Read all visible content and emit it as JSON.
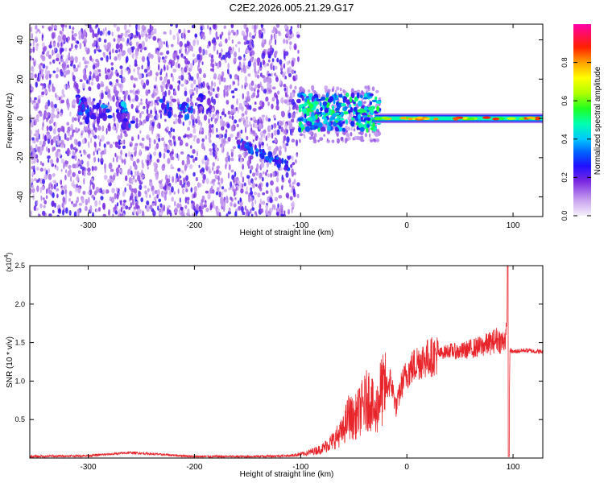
{
  "figure": {
    "title": "C2E2.2026.005.21.29.G17"
  },
  "colors": {
    "snr_line": "#e8252b",
    "spectrogram_scale": [
      "#ffffff",
      "#e6d8f7",
      "#8a2be2",
      "#3b00ff",
      "#0040ff",
      "#00c8ff",
      "#00ff80",
      "#80ff00",
      "#ffff00",
      "#ff8000",
      "#ff0000",
      "#ff00a0"
    ]
  },
  "chart_data": [
    {
      "type": "heatmap",
      "title": "C2E2.2026.005.21.29.G17",
      "xlabel": "Height of straight line (km)",
      "ylabel": "Frequency (Hz)",
      "xlim": [
        -355,
        128
      ],
      "ylim": [
        -50,
        48
      ],
      "xticks": [
        -300,
        -200,
        -100,
        0,
        100
      ],
      "yticks": [
        -40,
        -20,
        0,
        20,
        40
      ],
      "xtick_labels": [
        "-300",
        "-200",
        "-100",
        "0",
        "100"
      ],
      "ytick_labels": [
        "-40",
        "-20",
        "0",
        "20",
        "40"
      ],
      "colorbar": {
        "label": "Normalized spectral amplitude",
        "range": [
          0,
          1
        ],
        "ticks": [
          0.0,
          0.2,
          0.4,
          0.6,
          0.8
        ],
        "tick_labels": [
          "0.0",
          "0.2",
          "0.4",
          "0.6",
          "0.8"
        ],
        "colormap": "rainbow"
      },
      "features": [
        {
          "desc": "broadband noise (low amplitude)",
          "x_range": [
            -355,
            -102
          ],
          "freq_range": [
            -50,
            48
          ],
          "amplitude": 0.15
        },
        {
          "desc": "signal blob",
          "x": -305,
          "freq": 7,
          "amplitude": 0.35
        },
        {
          "desc": "signal blob",
          "x": -300,
          "freq": 3,
          "amplitude": 0.3
        },
        {
          "desc": "signal blob",
          "x": -285,
          "freq": 3,
          "amplitude": 0.35
        },
        {
          "desc": "signal blob",
          "x": -268,
          "freq": 4,
          "amplitude": 0.4
        },
        {
          "desc": "signal blob",
          "x": -262,
          "freq": -1,
          "amplitude": 0.3
        },
        {
          "desc": "signal blob",
          "x": -225,
          "freq": 6,
          "amplitude": 0.3
        },
        {
          "desc": "signal blob",
          "x": -208,
          "freq": 4,
          "amplitude": 0.35
        },
        {
          "desc": "signal blob",
          "x": -190,
          "freq": 8,
          "amplitude": 0.25
        },
        {
          "desc": "descending streak",
          "x_range": [
            -160,
            -110
          ],
          "freq_range": [
            -12,
            -25
          ],
          "amplitude": 0.3
        },
        {
          "desc": "carrier spread",
          "x_range": [
            -102,
            -25
          ],
          "freq_range": [
            -6,
            12
          ],
          "amplitude": 0.45
        },
        {
          "desc": "carrier line",
          "x_range": [
            -30,
            128
          ],
          "freq": 0,
          "amplitude": 0.7
        }
      ]
    },
    {
      "type": "line",
      "xlabel": "Height of straight line (km)",
      "ylabel": "SNR (10 * v/v)",
      "yscale_label": "(x10",
      "yscale_exponent": "4",
      "xlim": [
        -355,
        128
      ],
      "ylim": [
        0,
        2.5
      ],
      "xticks": [
        -300,
        -200,
        -100,
        0,
        100
      ],
      "yticks": [
        0.5,
        1.0,
        1.5,
        2.0,
        2.5
      ],
      "xtick_labels": [
        "-300",
        "-200",
        "-100",
        "0",
        "100"
      ],
      "ytick_labels": [
        "0.5",
        "1.0",
        "1.5",
        "2.0",
        "2.5"
      ],
      "series": [
        {
          "x": [
            -355,
            -300,
            -260,
            -200,
            -150,
            -110,
            -95,
            -80,
            -70,
            -60,
            -55,
            -50,
            -45,
            -40,
            -35,
            -30,
            -25,
            -20,
            -15,
            -10,
            -5,
            0,
            10,
            20,
            30,
            40,
            50,
            60,
            70,
            80,
            85,
            90,
            94,
            95,
            96,
            97,
            100,
            110,
            128
          ],
          "y": [
            0.02,
            0.03,
            0.07,
            0.02,
            0.02,
            0.03,
            0.06,
            0.12,
            0.22,
            0.35,
            0.55,
            0.5,
            0.6,
            0.7,
            0.8,
            0.55,
            0.85,
            0.9,
            1.0,
            0.65,
            0.95,
            1.1,
            1.25,
            1.3,
            1.35,
            1.4,
            1.38,
            1.42,
            1.45,
            1.5,
            1.55,
            1.5,
            1.6,
            2.5,
            0.02,
            1.4,
            1.38,
            1.4,
            1.38
          ]
        }
      ]
    }
  ]
}
